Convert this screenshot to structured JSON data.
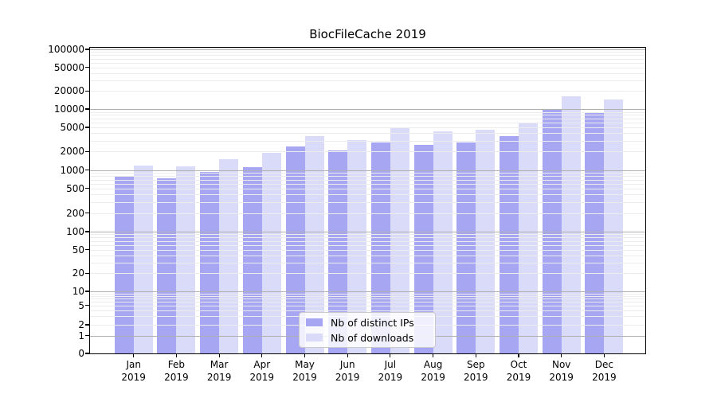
{
  "figure": {
    "title": "BiocFileCache 2019"
  },
  "colors": {
    "distinct_ips_bar": "#a6a6f3",
    "downloads_bar": "#dadaf9",
    "major_gridline": "#b0b0b0",
    "minor_gridline": "#ececec",
    "axis_spine": "#000000",
    "legend_border": "#c9c9c9"
  },
  "legend": {
    "items": [
      {
        "label": "Nb of distinct IPs",
        "color_key": "distinct_ips_bar"
      },
      {
        "label": "Nb of downloads",
        "color_key": "downloads_bar"
      }
    ]
  },
  "x_axis": {
    "months": [
      "Jan",
      "Feb",
      "Mar",
      "Apr",
      "May",
      "Jun",
      "Jul",
      "Aug",
      "Sep",
      "Oct",
      "Nov",
      "Dec"
    ],
    "year": "2019"
  },
  "y_axis": {
    "tick_labels": [
      "0",
      "1",
      "2",
      "5",
      "10",
      "20",
      "50",
      "100",
      "200",
      "500",
      "1000",
      "2000",
      "5000",
      "10000",
      "20000",
      "50000",
      "100000"
    ]
  },
  "chart_data": {
    "type": "bar",
    "title": "BiocFileCache 2019",
    "categories": [
      "Jan 2019",
      "Feb 2019",
      "Mar 2019",
      "Apr 2019",
      "May 2019",
      "Jun 2019",
      "Jul 2019",
      "Aug 2019",
      "Sep 2019",
      "Oct 2019",
      "Nov 2019",
      "Dec 2019"
    ],
    "series": [
      {
        "name": "Nb of distinct IPs",
        "values": [
          800,
          730,
          930,
          1100,
          2400,
          2100,
          2800,
          2600,
          2800,
          3600,
          9800,
          8600
        ]
      },
      {
        "name": "Nb of downloads",
        "values": [
          1180,
          1130,
          1500,
          1900,
          3600,
          3050,
          4900,
          4350,
          4550,
          5800,
          16300,
          14300
        ]
      }
    ],
    "xlabel": "",
    "ylabel": "",
    "yscale": "symlog",
    "ylim": [
      0,
      100000
    ],
    "yticks": [
      0,
      1,
      2,
      5,
      10,
      20,
      50,
      100,
      200,
      500,
      1000,
      2000,
      5000,
      10000,
      20000,
      50000,
      100000
    ],
    "grid": "major and minor horizontal gridlines, drawn above bars",
    "legend_position": "inside axes, lower center"
  }
}
